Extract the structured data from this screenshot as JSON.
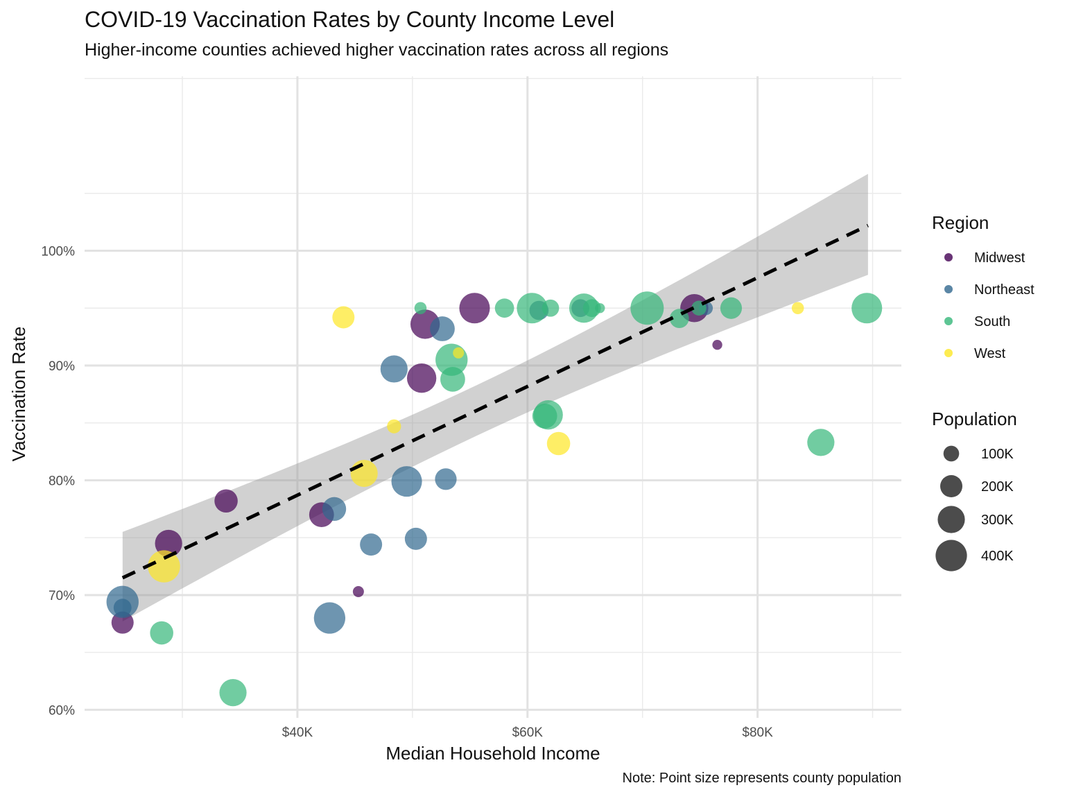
{
  "chart_data": {
    "type": "scatter",
    "title": "COVID-19 Vaccination Rates by County Income Level",
    "subtitle": "Higher-income counties achieved higher vaccination rates across all regions",
    "caption": "Note: Point size represents county population",
    "xlabel": "Median Household Income",
    "ylabel": "Vaccination Rate",
    "xlim": [
      21500,
      92500
    ],
    "ylim": [
      0.593,
      1.152
    ],
    "x_ticks": [
      40000,
      60000,
      80000
    ],
    "x_tick_labels": [
      "$40K",
      "$60K",
      "$80K"
    ],
    "y_ticks": [
      0.6,
      0.7,
      0.8,
      0.9,
      1.0
    ],
    "y_tick_labels": [
      "60%",
      "70%",
      "80%",
      "90%",
      "100%"
    ],
    "grid": true,
    "legend_placement": "right",
    "colors": {
      "Midwest": "#440154",
      "Northeast": "#31688E",
      "South": "#35B779",
      "West": "#FDE725"
    },
    "color_legend": {
      "title": "Region",
      "entries": [
        "Midwest",
        "Northeast",
        "South",
        "West"
      ]
    },
    "size_legend": {
      "title": "Population",
      "values": [
        100000,
        200000,
        300000,
        400000
      ],
      "labels": [
        "100K",
        "200K",
        "300K",
        "400K"
      ]
    },
    "trend_line": {
      "style": "dashed",
      "x": [
        24800,
        89600
      ],
      "y": [
        0.715,
        1.022
      ],
      "ci_lower": [
        0.677,
        0.979
      ],
      "ci_upper": [
        0.755,
        1.067
      ]
    },
    "series": [
      {
        "name": "Midwest",
        "points": [
          {
            "x": 24800,
            "y": 0.676,
            "pop": 200000
          },
          {
            "x": 28800,
            "y": 0.745,
            "pop": 300000
          },
          {
            "x": 33800,
            "y": 0.782,
            "pop": 220000
          },
          {
            "x": 42100,
            "y": 0.77,
            "pop": 250000
          },
          {
            "x": 45300,
            "y": 0.703,
            "pop": 50000
          },
          {
            "x": 50800,
            "y": 0.889,
            "pop": 350000
          },
          {
            "x": 51100,
            "y": 0.936,
            "pop": 350000
          },
          {
            "x": 55400,
            "y": 0.95,
            "pop": 380000
          },
          {
            "x": 74500,
            "y": 0.95,
            "pop": 320000
          },
          {
            "x": 76500,
            "y": 0.918,
            "pop": 40000
          }
        ]
      },
      {
        "name": "Northeast",
        "points": [
          {
            "x": 24800,
            "y": 0.694,
            "pop": 420000
          },
          {
            "x": 24800,
            "y": 0.689,
            "pop": 130000
          },
          {
            "x": 42800,
            "y": 0.68,
            "pop": 400000
          },
          {
            "x": 43200,
            "y": 0.775,
            "pop": 230000
          },
          {
            "x": 46400,
            "y": 0.744,
            "pop": 200000
          },
          {
            "x": 48400,
            "y": 0.897,
            "pop": 300000
          },
          {
            "x": 49500,
            "y": 0.799,
            "pop": 380000
          },
          {
            "x": 50300,
            "y": 0.749,
            "pop": 200000
          },
          {
            "x": 52600,
            "y": 0.932,
            "pop": 250000
          },
          {
            "x": 52900,
            "y": 0.801,
            "pop": 190000
          },
          {
            "x": 61000,
            "y": 0.948,
            "pop": 150000
          },
          {
            "x": 64600,
            "y": 0.95,
            "pop": 130000
          },
          {
            "x": 75500,
            "y": 0.95,
            "pop": 80000
          }
        ]
      },
      {
        "name": "South",
        "points": [
          {
            "x": 28200,
            "y": 0.667,
            "pop": 220000
          },
          {
            "x": 34400,
            "y": 0.615,
            "pop": 300000
          },
          {
            "x": 50700,
            "y": 0.95,
            "pop": 60000
          },
          {
            "x": 53400,
            "y": 0.905,
            "pop": 420000
          },
          {
            "x": 53500,
            "y": 0.888,
            "pop": 250000
          },
          {
            "x": 58000,
            "y": 0.95,
            "pop": 150000
          },
          {
            "x": 60400,
            "y": 0.95,
            "pop": 380000
          },
          {
            "x": 61500,
            "y": 0.856,
            "pop": 250000
          },
          {
            "x": 61800,
            "y": 0.857,
            "pop": 350000
          },
          {
            "x": 62000,
            "y": 0.95,
            "pop": 120000
          },
          {
            "x": 64900,
            "y": 0.95,
            "pop": 350000
          },
          {
            "x": 65600,
            "y": 0.95,
            "pop": 130000
          },
          {
            "x": 66300,
            "y": 0.95,
            "pop": 40000
          },
          {
            "x": 70400,
            "y": 0.95,
            "pop": 450000
          },
          {
            "x": 73200,
            "y": 0.941,
            "pop": 150000
          },
          {
            "x": 74900,
            "y": 0.95,
            "pop": 90000
          },
          {
            "x": 77700,
            "y": 0.95,
            "pop": 190000
          },
          {
            "x": 85500,
            "y": 0.833,
            "pop": 300000
          },
          {
            "x": 89500,
            "y": 0.95,
            "pop": 380000
          }
        ]
      },
      {
        "name": "West",
        "points": [
          {
            "x": 28400,
            "y": 0.725,
            "pop": 420000
          },
          {
            "x": 44000,
            "y": 0.942,
            "pop": 200000
          },
          {
            "x": 45800,
            "y": 0.806,
            "pop": 300000
          },
          {
            "x": 48400,
            "y": 0.847,
            "pop": 80000
          },
          {
            "x": 54000,
            "y": 0.911,
            "pop": 50000
          },
          {
            "x": 62700,
            "y": 0.832,
            "pop": 220000
          },
          {
            "x": 83500,
            "y": 0.95,
            "pop": 60000
          }
        ]
      }
    ]
  }
}
